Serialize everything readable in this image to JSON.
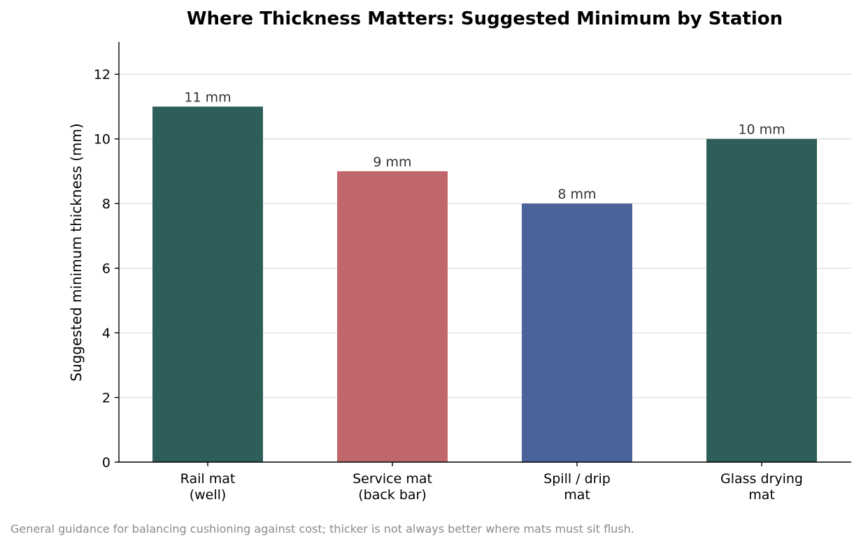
{
  "chart_data": {
    "type": "bar",
    "title": "Where Thickness Matters: Suggested Minimum by Station",
    "xlabel": "",
    "ylabel": "Suggested minimum thickness (mm)",
    "categories": [
      [
        "Rail mat",
        "(well)"
      ],
      [
        "Service mat",
        "(back bar)"
      ],
      [
        "Spill / drip",
        "mat"
      ],
      [
        "Glass drying",
        "mat"
      ]
    ],
    "values": [
      11,
      9,
      8,
      10
    ],
    "data_labels": [
      "11 mm",
      "9 mm",
      "8 mm",
      "10 mm"
    ],
    "colors": [
      "#2e5e5a",
      "#c0676b",
      "#4a639b",
      "#2e5e5a"
    ],
    "ylim": [
      0,
      13
    ],
    "yticks": [
      0,
      2,
      4,
      6,
      8,
      10,
      12
    ],
    "grid": "y",
    "legend": "none",
    "footnote": "General guidance for balancing cushioning against cost; thicker is not always better where mats must sit flush."
  }
}
